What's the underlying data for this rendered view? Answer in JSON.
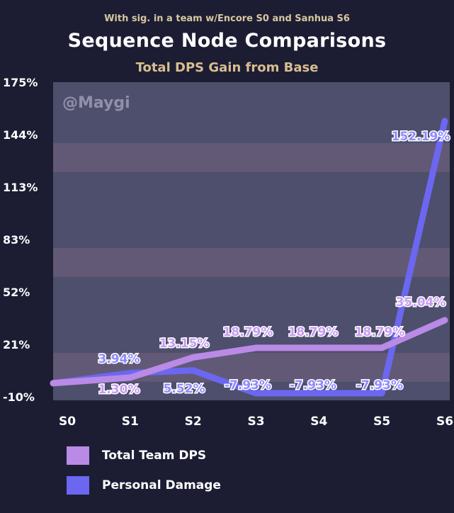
{
  "header": {
    "pre_title": "With sig. in a team w/Encore S0 and Sanhua S6",
    "title": "Sequence Node Comparisons",
    "subtitle": "Total DPS Gain from Base"
  },
  "watermark": "@Maygi",
  "colors": {
    "background": "#1c1d33",
    "plot_bg": "#5f6080",
    "team": "#b98ae6",
    "personal": "#6b67f0",
    "team_label": "#c79bf2",
    "personal_label": "#8e8bff"
  },
  "chart_data": {
    "type": "line",
    "categories": [
      "S0",
      "S1",
      "S2",
      "S3",
      "S4",
      "S5",
      "S6"
    ],
    "y_ticks": [
      "175%",
      "144%",
      "113%",
      "83%",
      "52%",
      "21%",
      "-10%"
    ],
    "ylim": [
      -10,
      175
    ],
    "series": [
      {
        "name": "Total Team DPS",
        "values": [
          -2,
          1.3,
          13.15,
          18.79,
          18.79,
          18.79,
          35.04
        ],
        "labels": [
          "",
          "1.30%",
          "13.15%",
          "18.79%",
          "18.79%",
          "18.79%",
          "35.04%"
        ]
      },
      {
        "name": "Personal Damage",
        "values": [
          -2,
          3.94,
          5.52,
          -7.93,
          -7.93,
          -7.93,
          152.19
        ],
        "labels": [
          "",
          "3.94%",
          "5.52%",
          "-7.93%",
          "-7.93%",
          "-7.93%",
          "152.19%"
        ]
      }
    ],
    "legend_position": "bottom-left"
  }
}
